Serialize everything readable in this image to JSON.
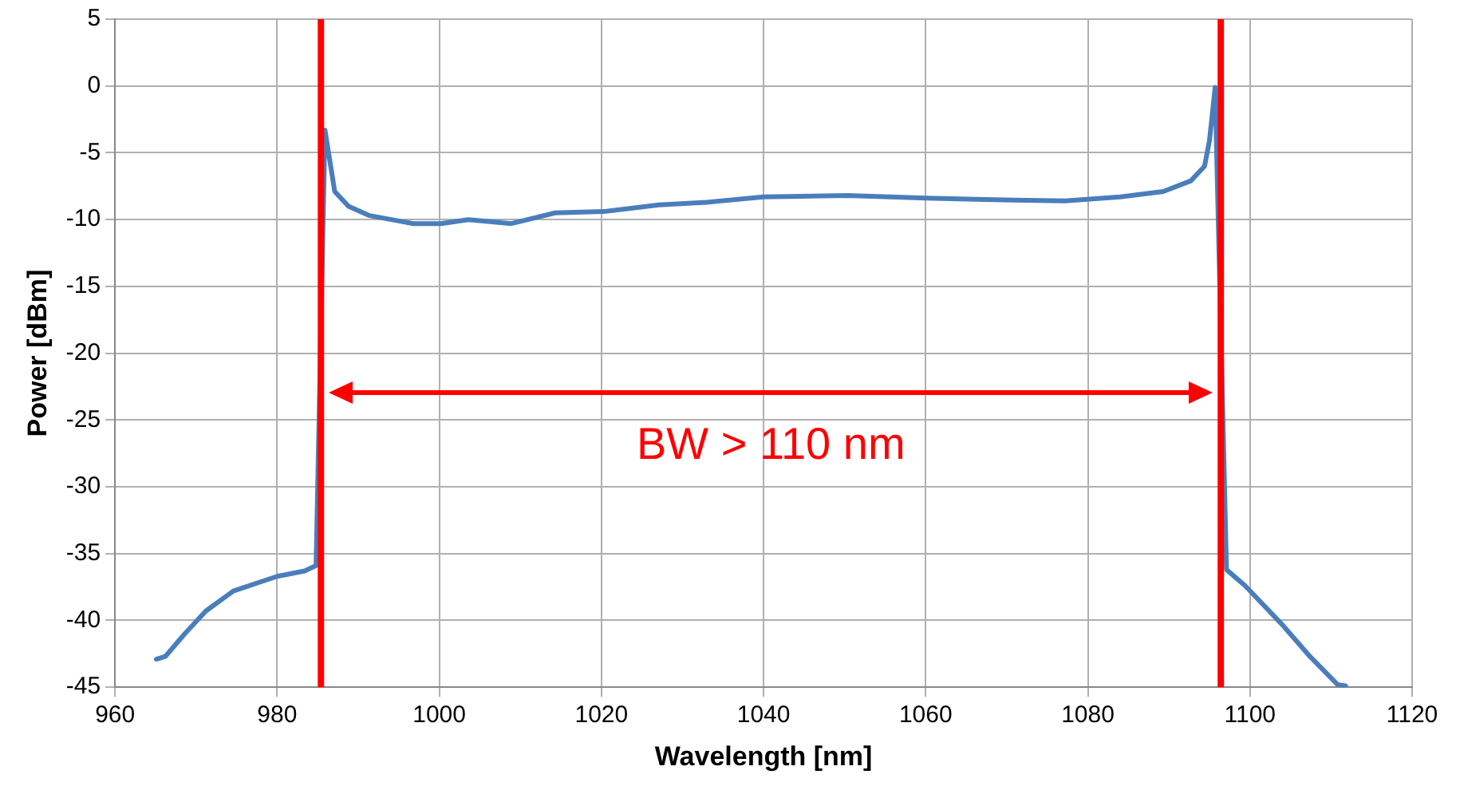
{
  "chart_data": {
    "type": "line",
    "xlabel": "Wavelength [nm]",
    "ylabel": "Power [dBm]",
    "xlim": [
      960,
      1120
    ],
    "xticks": [
      960,
      980,
      1000,
      1020,
      1040,
      1060,
      1080,
      1100,
      1120
    ],
    "ylim": [
      -45,
      5
    ],
    "yticks": [
      -45,
      -40,
      -35,
      -30,
      -25,
      -20,
      -15,
      -10,
      -5,
      0,
      5
    ],
    "grid": true,
    "legend": false,
    "marker": "none",
    "line_style": "solid",
    "series": [
      {
        "color": "#4a7ebb",
        "x": [
          965.1,
          966.2,
          968.6,
          971.2,
          974.6,
          980,
          983.4,
          984.8,
          985.9,
          987.1,
          988.8,
          991.4,
          996.8,
          1000.2,
          1003.6,
          1008.9,
          1014.3,
          1020.3,
          1027.1,
          1033,
          1040,
          1050.4,
          1060,
          1067.2,
          1077.2,
          1084,
          1089.3,
          1092.7,
          1094.4,
          1095,
          1095.7,
          1097.1,
          1099.4,
          1104.1,
          1107.4,
          1110.8,
          1111.8
        ],
        "values": [
          -42.9,
          -42.7,
          -41,
          -39.3,
          -37.8,
          -36.7,
          -36.3,
          -35.9,
          -3.3,
          -7.9,
          -9,
          -9.7,
          -10.3,
          -10.3,
          -10,
          -10.3,
          -9.5,
          -9.4,
          -8.9,
          -8.7,
          -8.3,
          -8.2,
          -8.4,
          -8.5,
          -8.6,
          -8.3,
          -7.9,
          -7.1,
          -6,
          -4.1,
          -0.1,
          -36.2,
          -37.4,
          -40.4,
          -42.7,
          -44.8,
          -44.9
        ]
      }
    ],
    "ref_lines": [
      {
        "axis": "x",
        "value": 985.4,
        "color": "#ff0000",
        "line_style": "solid"
      },
      {
        "axis": "x",
        "value": 1096.4,
        "color": "#ff0000",
        "line_style": "solid"
      }
    ],
    "annotations": [
      "BW > 110 nm"
    ]
  }
}
